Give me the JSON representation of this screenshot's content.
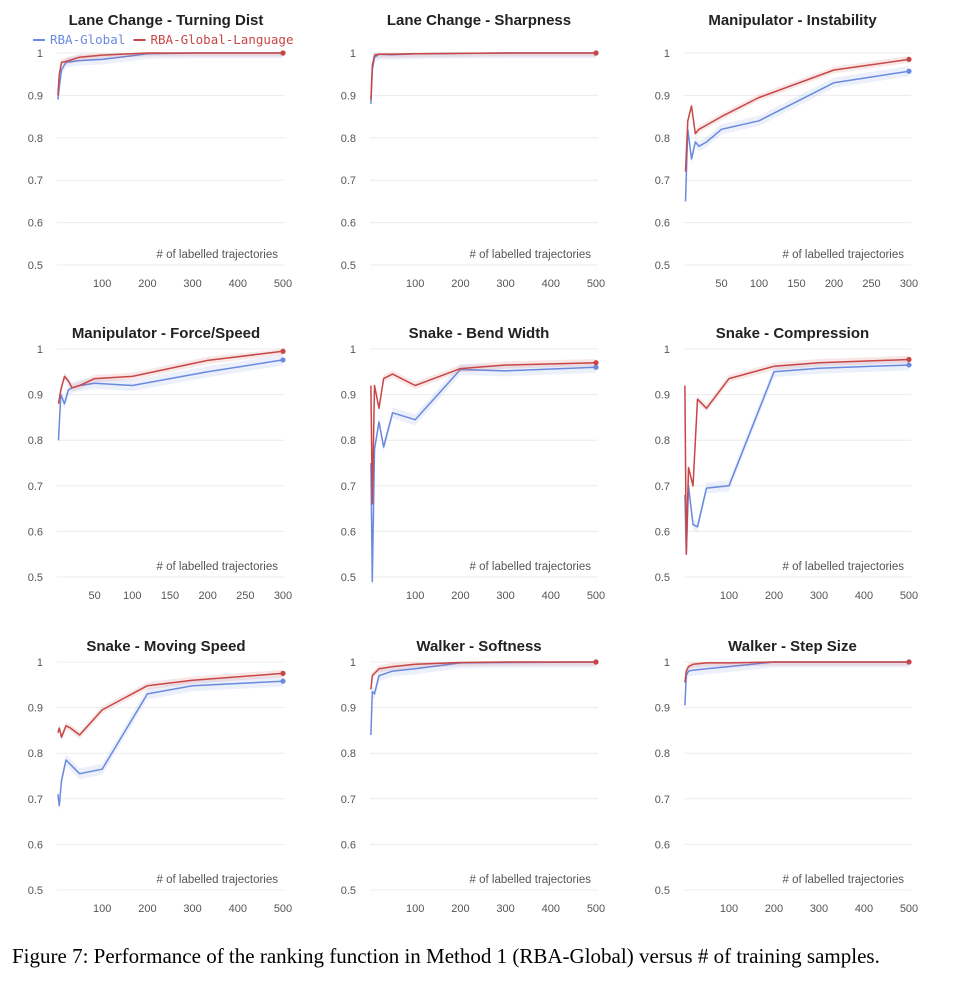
{
  "caption": "Figure 7: Performance of the ranking function in Method 1 (RBA-Global) versus # of training samples.",
  "colors": {
    "global": "#6a8ae0",
    "language": "#c84646",
    "grid": "#ececec"
  },
  "legend": [
    {
      "label": "RBA-Global",
      "series": "global"
    },
    {
      "label": "RBA-Global-Language",
      "series": "language"
    }
  ],
  "chart_data": [
    {
      "type": "line",
      "title": "Lane Change - Turning Dist",
      "xlabel": "# of labelled trajectories",
      "xlim": [
        0,
        500
      ],
      "ylim": [
        0.5,
        1.0
      ],
      "xticks": [
        100,
        200,
        300,
        400,
        500
      ],
      "yticks": [
        "0.5",
        "0.6",
        "0.7",
        "0.8",
        "0.9",
        "1"
      ],
      "series": [
        {
          "key": "global",
          "x": [
            2,
            5,
            10,
            20,
            50,
            100,
            200,
            300,
            500
          ],
          "y": [
            0.89,
            0.92,
            0.96,
            0.978,
            0.982,
            0.985,
            0.998,
            1.0,
            1.0
          ]
        },
        {
          "key": "language",
          "x": [
            2,
            5,
            10,
            20,
            50,
            100,
            200,
            300,
            500
          ],
          "y": [
            0.9,
            0.95,
            0.978,
            0.98,
            0.99,
            0.995,
            1.0,
            1.0,
            1.0
          ]
        }
      ]
    },
    {
      "type": "line",
      "title": "Lane Change - Sharpness",
      "xlabel": "# of labelled trajectories",
      "xlim": [
        0,
        500
      ],
      "ylim": [
        0.5,
        1.0
      ],
      "xticks": [
        100,
        200,
        300,
        400,
        500
      ],
      "yticks": [
        "0.5",
        "0.6",
        "0.7",
        "0.8",
        "0.9",
        "1"
      ],
      "series": [
        {
          "key": "global",
          "x": [
            2,
            5,
            10,
            20,
            50,
            100,
            200,
            300,
            500
          ],
          "y": [
            0.88,
            0.96,
            0.99,
            0.997,
            0.996,
            0.998,
            0.999,
            1.0,
            1.0
          ]
        },
        {
          "key": "language",
          "x": [
            2,
            5,
            10,
            20,
            50,
            100,
            200,
            300,
            500
          ],
          "y": [
            0.89,
            0.97,
            0.995,
            0.997,
            0.997,
            0.998,
            0.999,
            1.0,
            1.0
          ]
        }
      ]
    },
    {
      "type": "line",
      "title": "Manipulator - Instability",
      "xlabel": "# of labelled trajectories",
      "xlim": [
        0,
        300
      ],
      "ylim": [
        0.5,
        1.0
      ],
      "xticks": [
        50,
        100,
        150,
        200,
        250,
        300
      ],
      "yticks": [
        "0.5",
        "0.6",
        "0.7",
        "0.8",
        "0.9",
        "1"
      ],
      "series": [
        {
          "key": "global",
          "x": [
            2,
            5,
            10,
            15,
            20,
            30,
            50,
            100,
            200,
            300
          ],
          "y": [
            0.65,
            0.82,
            0.75,
            0.79,
            0.78,
            0.79,
            0.82,
            0.84,
            0.93,
            0.957
          ]
        },
        {
          "key": "language",
          "x": [
            2,
            5,
            10,
            15,
            20,
            30,
            50,
            100,
            200,
            300
          ],
          "y": [
            0.72,
            0.84,
            0.875,
            0.81,
            0.82,
            0.83,
            0.85,
            0.895,
            0.96,
            0.985
          ]
        }
      ]
    },
    {
      "type": "line",
      "title": "Manipulator - Force/Speed",
      "xlabel": "# of labelled trajectories",
      "xlim": [
        0,
        300
      ],
      "ylim": [
        0.5,
        1.0
      ],
      "xticks": [
        50,
        100,
        150,
        200,
        250,
        300
      ],
      "yticks": [
        "0.5",
        "0.6",
        "0.7",
        "0.8",
        "0.9",
        "1"
      ],
      "series": [
        {
          "key": "global",
          "x": [
            2,
            5,
            10,
            15,
            20,
            30,
            50,
            100,
            200,
            300
          ],
          "y": [
            0.8,
            0.9,
            0.88,
            0.91,
            0.915,
            0.92,
            0.925,
            0.92,
            0.95,
            0.976
          ]
        },
        {
          "key": "language",
          "x": [
            2,
            5,
            10,
            15,
            20,
            30,
            50,
            100,
            200,
            300
          ],
          "y": [
            0.88,
            0.91,
            0.94,
            0.93,
            0.915,
            0.92,
            0.935,
            0.94,
            0.975,
            0.995
          ]
        }
      ]
    },
    {
      "type": "line",
      "title": "Snake - Bend Width",
      "xlabel": "# of labelled trajectories",
      "xlim": [
        0,
        500
      ],
      "ylim": [
        0.5,
        1.0
      ],
      "xticks": [
        100,
        200,
        300,
        400,
        500
      ],
      "yticks": [
        "0.5",
        "0.6",
        "0.7",
        "0.8",
        "0.9",
        "1"
      ],
      "series": [
        {
          "key": "global",
          "x": [
            2,
            5,
            10,
            20,
            30,
            50,
            100,
            200,
            300,
            500
          ],
          "y": [
            0.75,
            0.49,
            0.78,
            0.84,
            0.785,
            0.86,
            0.845,
            0.955,
            0.952,
            0.96
          ]
        },
        {
          "key": "language",
          "x": [
            2,
            5,
            10,
            20,
            30,
            50,
            100,
            200,
            300,
            500
          ],
          "y": [
            0.92,
            0.66,
            0.92,
            0.87,
            0.935,
            0.945,
            0.92,
            0.957,
            0.965,
            0.97
          ]
        }
      ]
    },
    {
      "type": "line",
      "title": "Snake - Compression",
      "xlabel": "# of labelled trajectories",
      "xlim": [
        0,
        500
      ],
      "ylim": [
        0.5,
        1.0
      ],
      "xticks": [
        100,
        200,
        300,
        400,
        500
      ],
      "yticks": [
        "0.5",
        "0.6",
        "0.7",
        "0.8",
        "0.9",
        "1"
      ],
      "series": [
        {
          "key": "global",
          "x": [
            2,
            5,
            10,
            20,
            30,
            50,
            100,
            200,
            300,
            500
          ],
          "y": [
            0.68,
            0.55,
            0.7,
            0.615,
            0.61,
            0.695,
            0.7,
            0.95,
            0.958,
            0.965
          ]
        },
        {
          "key": "language",
          "x": [
            2,
            5,
            10,
            20,
            30,
            50,
            100,
            200,
            300,
            500
          ],
          "y": [
            0.92,
            0.55,
            0.74,
            0.7,
            0.89,
            0.87,
            0.935,
            0.962,
            0.97,
            0.977
          ]
        }
      ]
    },
    {
      "type": "line",
      "title": "Snake - Moving Speed",
      "xlabel": "# of labelled trajectories",
      "xlim": [
        0,
        500
      ],
      "ylim": [
        0.5,
        1.0
      ],
      "xticks": [
        100,
        200,
        300,
        400,
        500
      ],
      "yticks": [
        "0.5",
        "0.6",
        "0.7",
        "0.8",
        "0.9",
        "1"
      ],
      "series": [
        {
          "key": "global",
          "x": [
            2,
            5,
            10,
            20,
            50,
            100,
            200,
            300,
            500
          ],
          "y": [
            0.71,
            0.685,
            0.74,
            0.785,
            0.755,
            0.765,
            0.93,
            0.948,
            0.958
          ]
        },
        {
          "key": "language",
          "x": [
            2,
            5,
            10,
            20,
            30,
            50,
            100,
            200,
            300,
            500
          ],
          "y": [
            0.845,
            0.855,
            0.835,
            0.86,
            0.855,
            0.84,
            0.895,
            0.948,
            0.96,
            0.975
          ]
        }
      ]
    },
    {
      "type": "line",
      "title": "Walker - Softness",
      "xlabel": "# of labelled trajectories",
      "xlim": [
        0,
        500
      ],
      "ylim": [
        0.5,
        1.0
      ],
      "xticks": [
        100,
        200,
        300,
        400,
        500
      ],
      "yticks": [
        "0.5",
        "0.6",
        "0.7",
        "0.8",
        "0.9",
        "1"
      ],
      "series": [
        {
          "key": "global",
          "x": [
            2,
            5,
            10,
            20,
            50,
            100,
            200,
            300,
            500
          ],
          "y": [
            0.84,
            0.935,
            0.93,
            0.97,
            0.98,
            0.985,
            0.998,
            0.999,
            1.0
          ]
        },
        {
          "key": "language",
          "x": [
            2,
            5,
            10,
            20,
            50,
            100,
            200,
            300,
            500
          ],
          "y": [
            0.94,
            0.97,
            0.975,
            0.985,
            0.99,
            0.995,
            0.999,
            1.0,
            1.0
          ]
        }
      ]
    },
    {
      "type": "line",
      "title": "Walker - Step Size",
      "xlabel": "# of labelled trajectories",
      "xlim": [
        0,
        500
      ],
      "ylim": [
        0.5,
        1.0
      ],
      "xticks": [
        100,
        200,
        300,
        400,
        500
      ],
      "yticks": [
        "0.5",
        "0.6",
        "0.7",
        "0.8",
        "0.9",
        "1"
      ],
      "series": [
        {
          "key": "global",
          "x": [
            2,
            5,
            10,
            20,
            50,
            100,
            200,
            300,
            500
          ],
          "y": [
            0.905,
            0.97,
            0.98,
            0.982,
            0.985,
            0.99,
            1.0,
            1.0,
            1.0
          ]
        },
        {
          "key": "language",
          "x": [
            2,
            5,
            10,
            20,
            50,
            100,
            200,
            300,
            500
          ],
          "y": [
            0.955,
            0.98,
            0.99,
            0.995,
            0.998,
            0.998,
            1.0,
            1.0,
            1.0
          ]
        }
      ]
    }
  ]
}
